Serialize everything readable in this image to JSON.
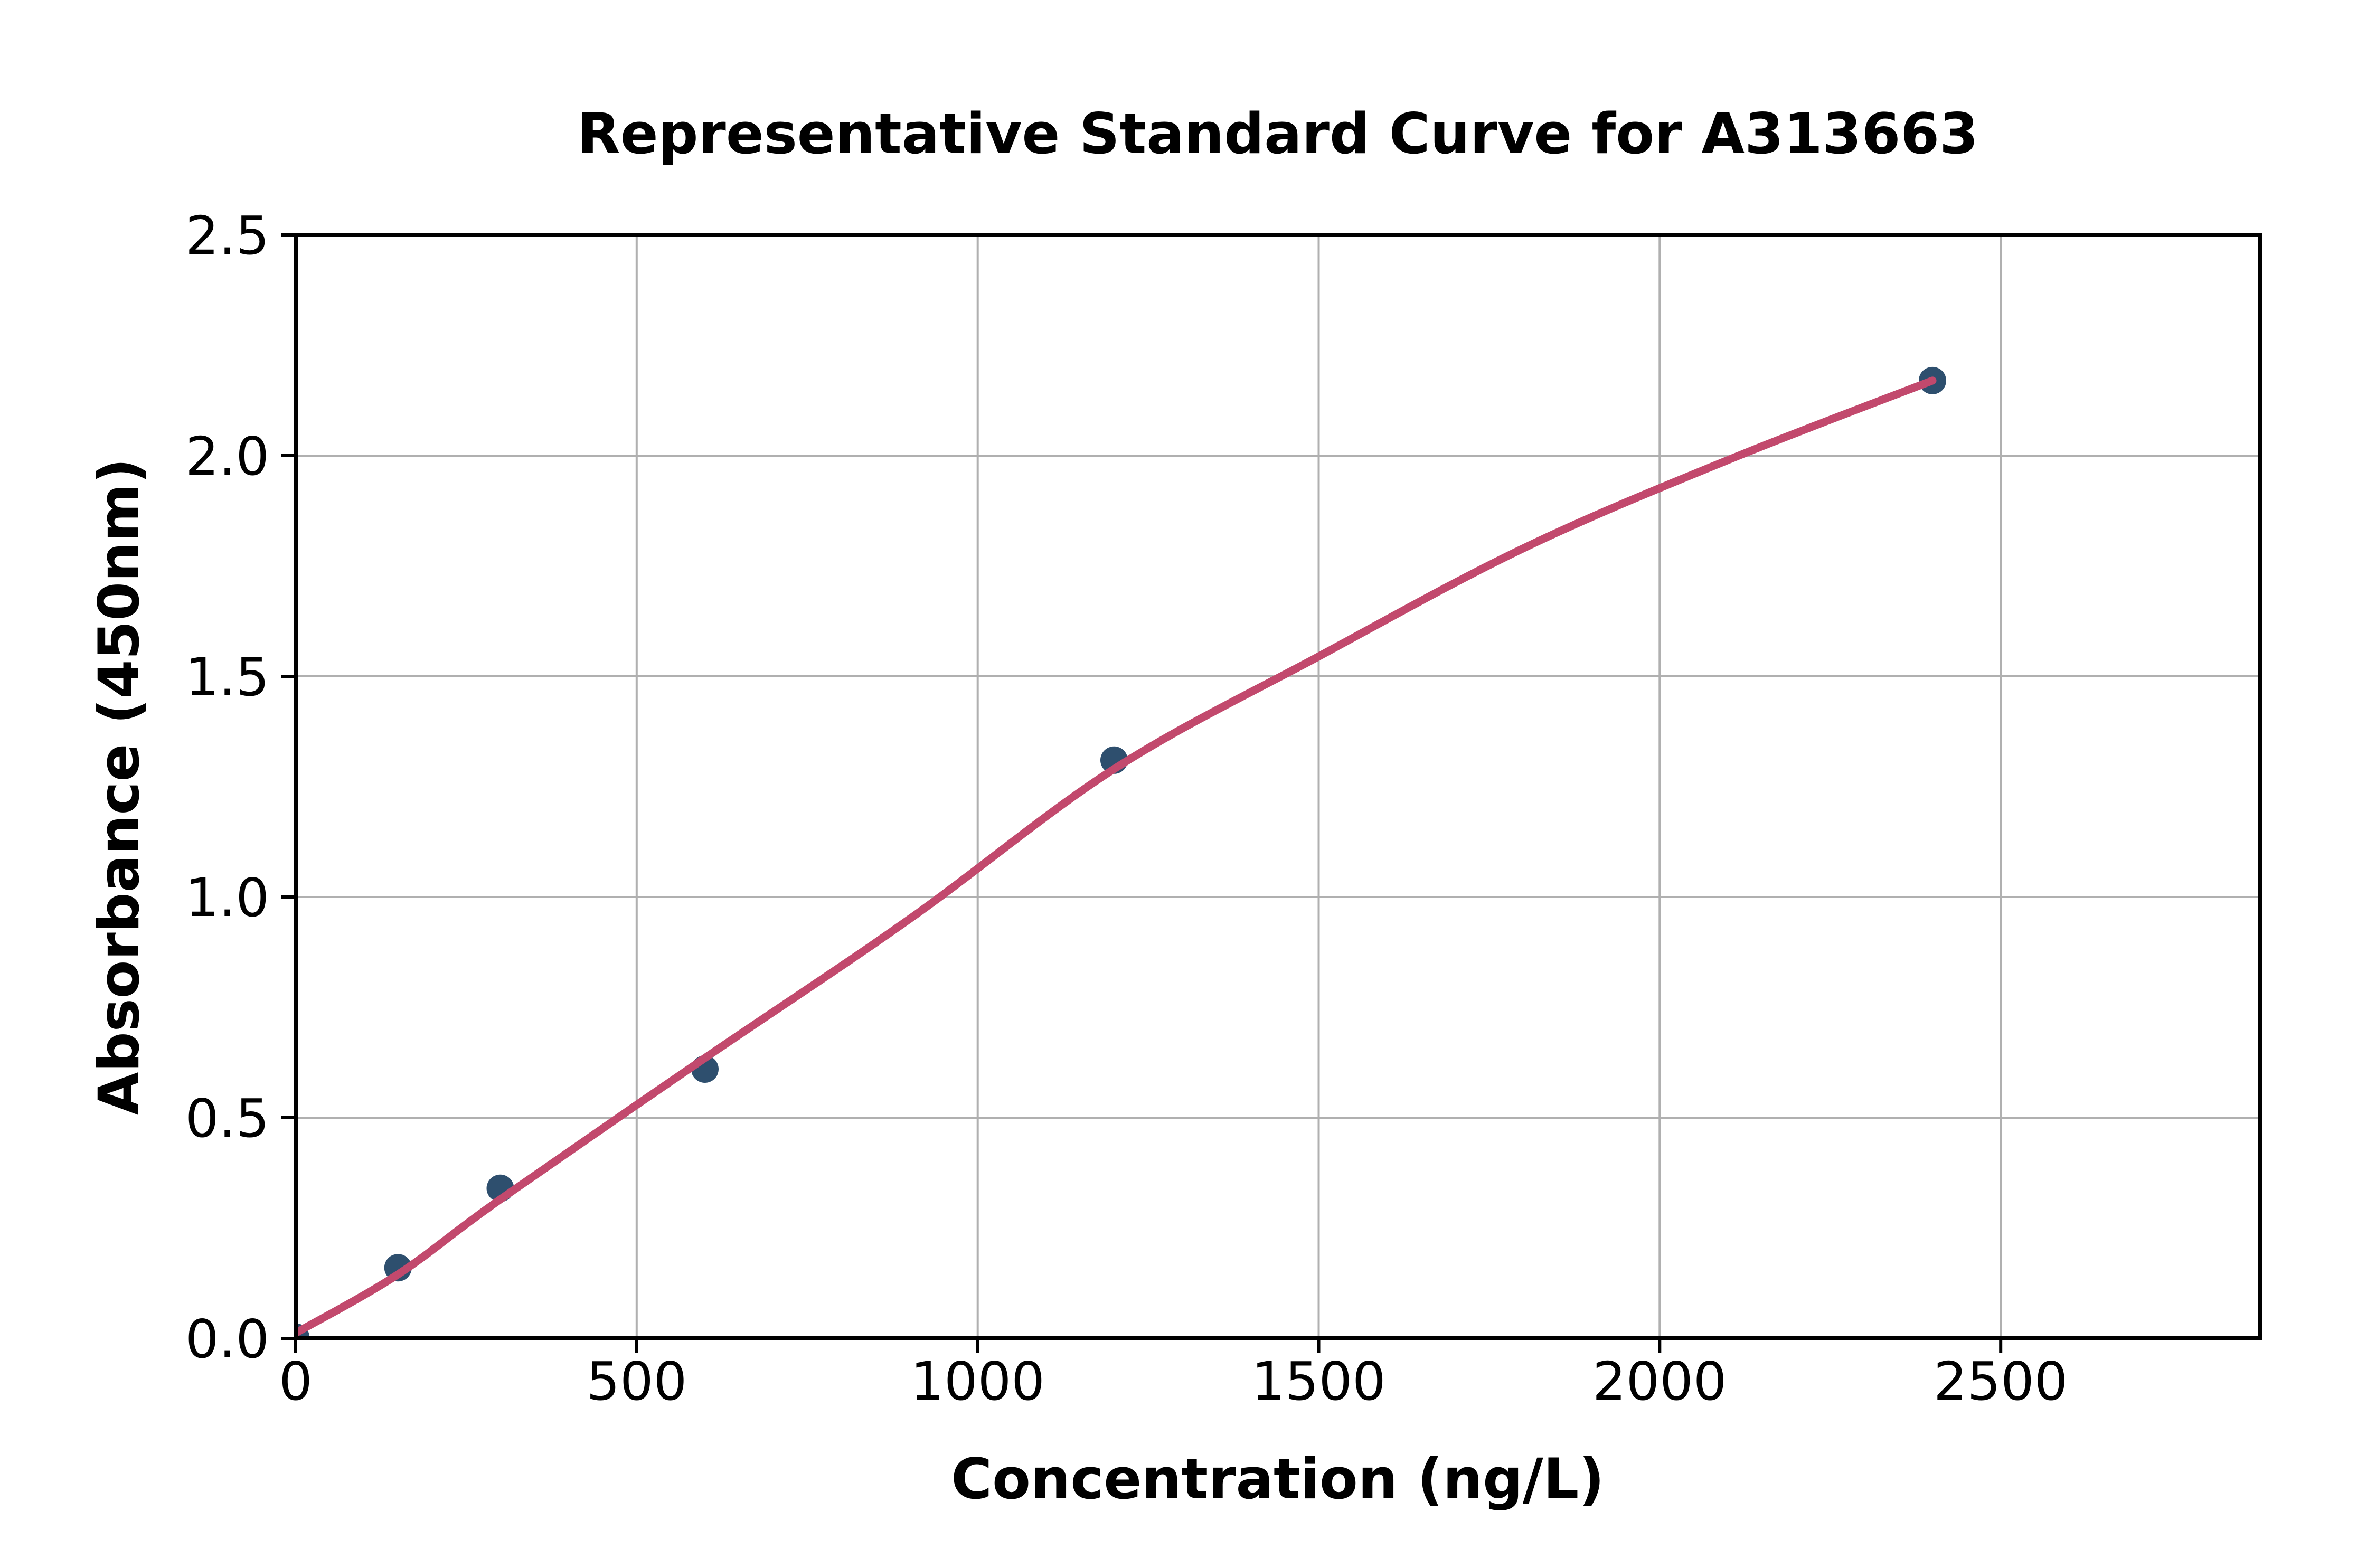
{
  "figure": {
    "background": "#ffffff"
  },
  "chart_data": {
    "type": "scatter",
    "title": "Representative Standard Curve for A313663",
    "xlabel": "Concentration (ng/L)",
    "ylabel": "Absorbance (450nm)",
    "xlim": [
      0,
      2880
    ],
    "ylim": [
      0,
      2.5
    ],
    "grid": true,
    "legend": "none",
    "xticks": {
      "values": [
        0,
        500,
        1000,
        1500,
        2000,
        2500
      ],
      "labels": [
        "0",
        "500",
        "1000",
        "1500",
        "2000",
        "2500"
      ]
    },
    "yticks": {
      "values": [
        0.0,
        0.5,
        1.0,
        1.5,
        2.0,
        2.5
      ],
      "labels": [
        "0.0",
        "0.5",
        "1.0",
        "1.5",
        "2.0",
        "2.5"
      ]
    },
    "series": [
      {
        "name": "standard-points",
        "kind": "scatter",
        "x": [
          0,
          150,
          300,
          600,
          1200,
          2400
        ],
        "y": [
          0.003,
          0.16,
          0.34,
          0.61,
          1.31,
          2.17
        ],
        "color": "#2e4f6e"
      },
      {
        "name": "fitted-curve",
        "kind": "line",
        "x": [
          0,
          150,
          300,
          600,
          900,
          1200,
          1500,
          1800,
          2100,
          2400
        ],
        "y": [
          0.012,
          0.145,
          0.315,
          0.635,
          0.95,
          1.29,
          1.545,
          1.79,
          1.99,
          2.17
        ],
        "color": "#c2496d"
      }
    ],
    "colors": {
      "grid": "#b0b0b0",
      "spine": "#000000",
      "text": "#000000",
      "background": "#ffffff"
    }
  }
}
